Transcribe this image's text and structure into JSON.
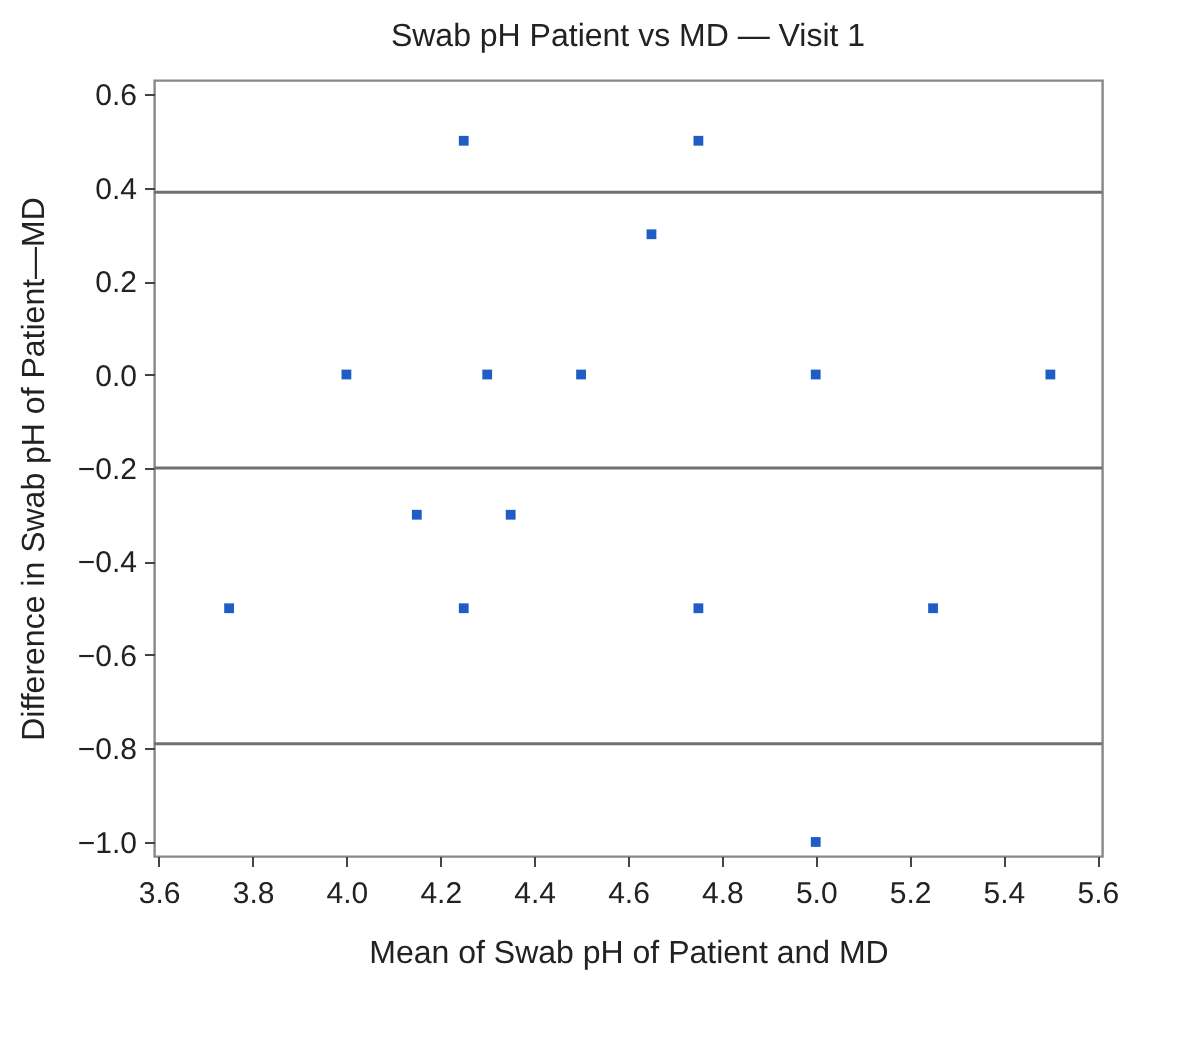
{
  "chart_data": {
    "type": "scatter",
    "title": "Swab pH Patient vs MD — Visit 1",
    "xlabel": "Mean of Swab pH of Patient and MD",
    "ylabel": "Difference in Swab pH of Patient—MD",
    "x": [
      3.75,
      4.0,
      4.15,
      4.25,
      4.25,
      4.3,
      4.35,
      4.5,
      4.65,
      4.75,
      4.75,
      5.0,
      5.0,
      5.25,
      5.5
    ],
    "series": [
      {
        "color": "#1f5cc4",
        "values": [
          -0.5,
          0.0,
          -0.3,
          0.5,
          -0.5,
          0.0,
          -0.3,
          0.0,
          0.3,
          0.5,
          -0.5,
          0.0,
          -1.0,
          -0.5,
          0.0
        ]
      }
    ],
    "xlim": [
      3.59,
      5.61
    ],
    "xticks": [
      3.6,
      3.8,
      {
        "value": 4,
        "label": "4.0"
      },
      4.2,
      4.4,
      4.6,
      4.8,
      {
        "value": 5,
        "label": "5.0"
      },
      5.2,
      5.4,
      5.6
    ],
    "ylim": [
      -1.03,
      0.63
    ],
    "yticks": [
      {
        "value": -1,
        "label": "−1.0"
      },
      -0.8,
      -0.6,
      -0.4,
      -0.2,
      {
        "value": 0,
        "label": "0.0"
      },
      0.2,
      0.4,
      0.6
    ],
    "ref_lines": [
      {
        "axis": "y",
        "value": 0.39,
        "color": "#707070"
      },
      {
        "axis": "y",
        "value": -0.2,
        "color": "#707070"
      },
      {
        "axis": "y",
        "value": -0.79,
        "color": "#707070"
      }
    ],
    "marker": "square",
    "grid": false
  }
}
